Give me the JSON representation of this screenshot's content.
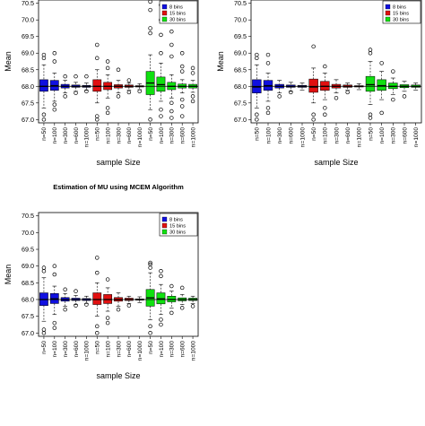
{
  "chart_data": [
    {
      "type": "boxplot",
      "title": "",
      "xlabel": "sample Size",
      "ylabel": "Mean",
      "ylim": [
        66.9,
        70.6
      ],
      "yticks": [
        67.0,
        67.5,
        68.0,
        68.5,
        69.0,
        69.5,
        70.0,
        70.5
      ],
      "reference_line": 68.0,
      "legend_position": "top-right",
      "legend": [
        "8 bins",
        "15 bins",
        "30 bins"
      ],
      "categories": [
        "n=50",
        "n=100",
        "n=300",
        "n=600",
        "n=1000"
      ],
      "series": [
        {
          "name": "8 bins",
          "color": "#1010e0",
          "boxes": [
            {
              "whislo": 67.35,
              "q1": 67.85,
              "med": 68.0,
              "q3": 68.2,
              "whishi": 68.65,
              "outliers": [
                67.0,
                67.15,
                68.85,
                68.95
              ]
            },
            {
              "whislo": 67.55,
              "q1": 67.88,
              "med": 68.02,
              "q3": 68.18,
              "whishi": 68.4,
              "outliers": [
                67.3,
                67.45,
                68.75,
                69.0
              ]
            },
            {
              "whislo": 67.8,
              "q1": 67.95,
              "med": 68.0,
              "q3": 68.06,
              "whishi": 68.18,
              "outliers": [
                67.7,
                68.3
              ]
            },
            {
              "whislo": 67.85,
              "q1": 67.97,
              "med": 68.0,
              "q3": 68.04,
              "whishi": 68.12,
              "outliers": [
                67.8,
                68.3
              ]
            },
            {
              "whislo": 67.88,
              "q1": 67.97,
              "med": 68.0,
              "q3": 68.03,
              "whishi": 68.1,
              "outliers": [
                67.85,
                68.3
              ]
            }
          ]
        },
        {
          "name": "15 bins",
          "color": "#e01010",
          "boxes": [
            {
              "whislo": 67.5,
              "q1": 67.85,
              "med": 68.0,
              "q3": 68.2,
              "whishi": 68.5,
              "outliers": [
                67.0,
                67.1,
                68.85,
                69.25
              ]
            },
            {
              "whislo": 67.65,
              "q1": 67.9,
              "med": 68.0,
              "q3": 68.12,
              "whishi": 68.35,
              "outliers": [
                67.2,
                67.35,
                68.55,
                68.75
              ]
            },
            {
              "whislo": 67.8,
              "q1": 67.95,
              "med": 68.0,
              "q3": 68.05,
              "whishi": 68.18,
              "outliers": [
                67.7,
                68.5
              ]
            },
            {
              "whislo": 67.88,
              "q1": 67.97,
              "med": 68.0,
              "q3": 68.04,
              "whishi": 68.1,
              "outliers": [
                67.82,
                68.18
              ]
            },
            {
              "whislo": 67.9,
              "q1": 67.98,
              "med": 68.0,
              "q3": 68.02,
              "whishi": 68.08,
              "outliers": [
                67.85
              ]
            }
          ]
        },
        {
          "name": "30 bins",
          "color": "#10e010",
          "boxes": [
            {
              "whislo": 67.3,
              "q1": 67.75,
              "med": 68.1,
              "q3": 68.45,
              "whishi": 68.95,
              "outliers": [
                67.0,
                69.6,
                69.75,
                70.3,
                70.55,
                70.65
              ]
            },
            {
              "whislo": 67.55,
              "q1": 67.85,
              "med": 68.05,
              "q3": 68.28,
              "whishi": 68.7,
              "outliers": [
                67.1,
                67.3,
                69.0,
                69.55,
                70.0,
                70.45
              ]
            },
            {
              "whislo": 67.65,
              "q1": 67.9,
              "med": 68.0,
              "q3": 68.12,
              "whishi": 68.35,
              "outliers": [
                67.05,
                67.25,
                67.5,
                68.9,
                69.25,
                69.65,
                70.2
              ]
            },
            {
              "whislo": 67.8,
              "q1": 67.95,
              "med": 68.0,
              "q3": 68.07,
              "whishi": 68.2,
              "outliers": [
                67.1,
                67.4,
                67.6,
                68.45,
                68.6,
                69.0
              ]
            },
            {
              "whislo": 67.82,
              "q1": 67.95,
              "med": 68.0,
              "q3": 68.06,
              "whishi": 68.18,
              "outliers": [
                67.55,
                67.7,
                68.4,
                68.55
              ]
            }
          ]
        }
      ]
    },
    {
      "type": "boxplot",
      "title": "",
      "xlabel": "sample Size",
      "ylabel": "Mean",
      "ylim": [
        66.9,
        70.6
      ],
      "yticks": [
        67.0,
        67.5,
        68.0,
        68.5,
        69.0,
        69.5,
        70.0,
        70.5
      ],
      "reference_line": 68.0,
      "legend_position": "top-right",
      "legend": [
        "8 bins",
        "15 bins",
        "30 bins"
      ],
      "categories": [
        "n=50",
        "n=100",
        "n=300",
        "n=600",
        "n=1000"
      ],
      "series": [
        {
          "name": "8 bins",
          "color": "#1010e0",
          "boxes": [
            {
              "whislo": 67.35,
              "q1": 67.8,
              "med": 67.98,
              "q3": 68.2,
              "whishi": 68.65,
              "outliers": [
                67.0,
                67.15,
                68.85,
                68.95
              ]
            },
            {
              "whislo": 67.55,
              "q1": 67.88,
              "med": 68.02,
              "q3": 68.18,
              "whishi": 68.4,
              "outliers": [
                67.2,
                67.35,
                68.7,
                68.95
              ]
            },
            {
              "whislo": 67.8,
              "q1": 67.95,
              "med": 68.0,
              "q3": 68.06,
              "whishi": 68.18,
              "outliers": [
                67.7
              ]
            },
            {
              "whislo": 67.85,
              "q1": 67.97,
              "med": 68.0,
              "q3": 68.04,
              "whishi": 68.12,
              "outliers": [
                67.82
              ]
            },
            {
              "whislo": 67.88,
              "q1": 67.97,
              "med": 68.0,
              "q3": 68.03,
              "whishi": 68.1,
              "outliers": []
            }
          ]
        },
        {
          "name": "15 bins",
          "color": "#e01010",
          "boxes": [
            {
              "whislo": 67.5,
              "q1": 67.82,
              "med": 67.98,
              "q3": 68.22,
              "whishi": 68.55,
              "outliers": [
                67.0,
                67.15,
                69.2
              ]
            },
            {
              "whislo": 67.6,
              "q1": 67.88,
              "med": 68.0,
              "q3": 68.15,
              "whishi": 68.4,
              "outliers": [
                67.15,
                67.35,
                68.6
              ]
            },
            {
              "whislo": 67.8,
              "q1": 67.95,
              "med": 68.0,
              "q3": 68.06,
              "whishi": 68.2,
              "outliers": [
                67.65
              ]
            },
            {
              "whislo": 67.88,
              "q1": 67.97,
              "med": 68.0,
              "q3": 68.04,
              "whishi": 68.1,
              "outliers": [
                67.82
              ]
            },
            {
              "whislo": 67.9,
              "q1": 67.98,
              "med": 68.0,
              "q3": 68.02,
              "whishi": 68.08,
              "outliers": []
            }
          ]
        },
        {
          "name": "30 bins",
          "color": "#10e010",
          "boxes": [
            {
              "whislo": 67.45,
              "q1": 67.85,
              "med": 68.05,
              "q3": 68.3,
              "whishi": 68.75,
              "outliers": [
                67.05,
                67.15,
                69.0,
                69.1
              ]
            },
            {
              "whislo": 67.6,
              "q1": 67.88,
              "med": 68.02,
              "q3": 68.2,
              "whishi": 68.45,
              "outliers": [
                67.2,
                68.7
              ]
            },
            {
              "whislo": 67.75,
              "q1": 67.93,
              "med": 68.0,
              "q3": 68.1,
              "whishi": 68.25,
              "outliers": [
                67.6,
                68.45
              ]
            },
            {
              "whislo": 67.85,
              "q1": 67.96,
              "med": 68.0,
              "q3": 68.05,
              "whishi": 68.15,
              "outliers": [
                67.7
              ]
            },
            {
              "whislo": 67.88,
              "q1": 67.97,
              "med": 68.0,
              "q3": 68.04,
              "whishi": 68.1,
              "outliers": []
            }
          ]
        }
      ]
    },
    {
      "type": "boxplot",
      "title": "Estimation of MU using MCEM Algorithm",
      "xlabel": "sample Size",
      "ylabel": "Mean",
      "ylim": [
        66.9,
        70.6
      ],
      "yticks": [
        67.0,
        67.5,
        68.0,
        68.5,
        69.0,
        69.5,
        70.0,
        70.5
      ],
      "reference_line": 68.0,
      "legend_position": "top-right",
      "legend": [
        "8 bins",
        "15 bins",
        "30 bins"
      ],
      "categories": [
        "n=50",
        "n=100",
        "n=300",
        "n=600",
        "n=1000"
      ],
      "series": [
        {
          "name": "8 bins",
          "color": "#1010e0",
          "boxes": [
            {
              "whislo": 67.35,
              "q1": 67.82,
              "med": 68.0,
              "q3": 68.2,
              "whishi": 68.65,
              "outliers": [
                67.0,
                67.1,
                68.85,
                68.95
              ]
            },
            {
              "whislo": 67.55,
              "q1": 67.88,
              "med": 68.02,
              "q3": 68.18,
              "whishi": 68.4,
              "outliers": [
                67.15,
                67.3,
                68.75,
                69.0
              ]
            },
            {
              "whislo": 67.8,
              "q1": 67.95,
              "med": 68.0,
              "q3": 68.06,
              "whishi": 68.18,
              "outliers": [
                67.7,
                68.3
              ]
            },
            {
              "whislo": 67.85,
              "q1": 67.97,
              "med": 68.0,
              "q3": 68.04,
              "whishi": 68.12,
              "outliers": [
                67.82,
                68.25
              ]
            },
            {
              "whislo": 67.88,
              "q1": 67.97,
              "med": 68.0,
              "q3": 68.03,
              "whishi": 68.1,
              "outliers": [
                67.85
              ]
            }
          ]
        },
        {
          "name": "15 bins",
          "color": "#e01010",
          "boxes": [
            {
              "whislo": 67.5,
              "q1": 67.85,
              "med": 68.0,
              "q3": 68.2,
              "whishi": 68.5,
              "outliers": [
                67.0,
                67.2,
                68.8,
                69.25
              ]
            },
            {
              "whislo": 67.65,
              "q1": 67.88,
              "med": 68.0,
              "q3": 68.15,
              "whishi": 68.35,
              "outliers": [
                67.3,
                67.45,
                68.6
              ]
            },
            {
              "whislo": 67.8,
              "q1": 67.95,
              "med": 68.0,
              "q3": 68.06,
              "whishi": 68.2,
              "outliers": [
                67.7
              ]
            },
            {
              "whislo": 67.88,
              "q1": 67.97,
              "med": 68.0,
              "q3": 68.04,
              "whishi": 68.1,
              "outliers": [
                67.82
              ]
            },
            {
              "whislo": 67.9,
              "q1": 67.98,
              "med": 68.0,
              "q3": 68.02,
              "whishi": 68.08,
              "outliers": []
            }
          ]
        },
        {
          "name": "30 bins",
          "color": "#10e010",
          "boxes": [
            {
              "whislo": 67.4,
              "q1": 67.8,
              "med": 68.05,
              "q3": 68.3,
              "whishi": 68.8,
              "outliers": [
                67.0,
                67.2,
                68.95,
                69.05,
                69.1
              ]
            },
            {
              "whislo": 67.55,
              "q1": 67.87,
              "med": 68.02,
              "q3": 68.2,
              "whishi": 68.45,
              "outliers": [
                67.25,
                67.4,
                68.7,
                68.85
              ]
            },
            {
              "whislo": 67.75,
              "q1": 67.93,
              "med": 68.0,
              "q3": 68.1,
              "whishi": 68.25,
              "outliers": [
                67.6,
                68.4
              ]
            },
            {
              "whislo": 67.85,
              "q1": 67.96,
              "med": 68.0,
              "q3": 68.05,
              "whishi": 68.15,
              "outliers": [
                67.75,
                68.35
              ]
            },
            {
              "whislo": 67.88,
              "q1": 67.97,
              "med": 68.0,
              "q3": 68.04,
              "whishi": 68.1,
              "outliers": [
                67.8
              ]
            }
          ]
        }
      ]
    }
  ]
}
